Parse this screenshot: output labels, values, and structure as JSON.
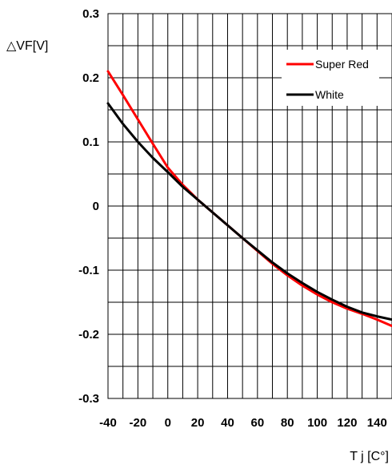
{
  "chart_data": {
    "type": "line",
    "ylabel": "△VF[V]",
    "xlabel": "T j [C°]",
    "xlim": [
      -40,
      150
    ],
    "ylim": [
      -0.3,
      0.3
    ],
    "x_ticks": [
      -40,
      -20,
      0,
      20,
      40,
      60,
      80,
      100,
      120,
      140
    ],
    "x_tick_labels": [
      "-40",
      "-20",
      "0",
      "20",
      "40",
      "60",
      "80",
      "100",
      "120",
      "140"
    ],
    "y_ticks": [
      0.3,
      0.2,
      0.1,
      0,
      -0.1,
      -0.2,
      -0.3
    ],
    "y_tick_labels": [
      "0.3",
      "0.2",
      "0.1",
      "0",
      "-0.1",
      "-0.2",
      "-0.3"
    ],
    "grid": true,
    "legend_position": "top-right",
    "series": [
      {
        "name": "Super Red",
        "color": "#ff0000",
        "x": [
          -40,
          -30,
          -20,
          -10,
          0,
          10,
          20,
          30,
          40,
          50,
          60,
          70,
          80,
          90,
          100,
          110,
          120,
          130,
          140,
          150
        ],
        "y": [
          0.21,
          0.173,
          0.135,
          0.097,
          0.06,
          0.033,
          0.01,
          -0.01,
          -0.03,
          -0.05,
          -0.07,
          -0.09,
          -0.108,
          -0.124,
          -0.138,
          -0.15,
          -0.16,
          -0.168,
          -0.177,
          -0.187
        ]
      },
      {
        "name": "White",
        "color": "#000000",
        "x": [
          -40,
          -30,
          -20,
          -10,
          0,
          10,
          20,
          30,
          40,
          50,
          60,
          70,
          80,
          90,
          100,
          110,
          120,
          130,
          140,
          150
        ],
        "y": [
          0.16,
          0.128,
          0.1,
          0.075,
          0.053,
          0.03,
          0.01,
          -0.01,
          -0.03,
          -0.05,
          -0.069,
          -0.088,
          -0.105,
          -0.12,
          -0.134,
          -0.146,
          -0.157,
          -0.166,
          -0.172,
          -0.177
        ]
      }
    ]
  }
}
